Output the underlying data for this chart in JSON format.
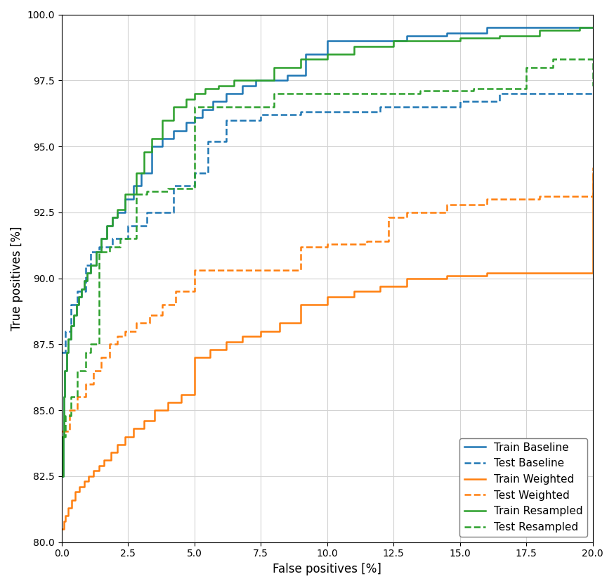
{
  "xlabel": "False positives [%]",
  "ylabel": "True positives [%]",
  "xlim": [
    0.0,
    20.0
  ],
  "ylim": [
    80.0,
    100.0
  ],
  "xticks": [
    0.0,
    2.5,
    5.0,
    7.5,
    10.0,
    12.5,
    15.0,
    17.5,
    20.0
  ],
  "yticks": [
    80.0,
    82.5,
    85.0,
    87.5,
    90.0,
    92.5,
    95.0,
    97.5,
    100.0
  ],
  "colors": {
    "blue": "#1f77b4",
    "orange": "#ff7f0e",
    "green": "#2ca02c"
  },
  "train_baseline_x": [
    0.0,
    0.05,
    0.08,
    0.12,
    0.18,
    0.25,
    0.35,
    0.45,
    0.55,
    0.65,
    0.75,
    0.85,
    0.95,
    1.1,
    1.3,
    1.5,
    1.7,
    1.9,
    2.1,
    2.4,
    2.7,
    3.0,
    3.4,
    3.8,
    4.2,
    4.7,
    5.0,
    5.3,
    5.7,
    6.2,
    6.8,
    7.3,
    7.8,
    8.5,
    9.2,
    10.0,
    11.0,
    12.0,
    13.0,
    14.5,
    16.0,
    17.0,
    18.0,
    19.0,
    20.0
  ],
  "train_baseline_y": [
    82.5,
    84.0,
    85.5,
    86.5,
    87.2,
    87.7,
    88.2,
    88.6,
    89.0,
    89.3,
    89.6,
    89.9,
    90.2,
    90.5,
    91.0,
    91.5,
    92.0,
    92.3,
    92.5,
    93.0,
    93.5,
    94.0,
    95.0,
    95.3,
    95.6,
    95.9,
    96.1,
    96.4,
    96.7,
    97.0,
    97.3,
    97.5,
    97.5,
    97.7,
    98.5,
    99.0,
    99.0,
    99.0,
    99.2,
    99.3,
    99.5,
    99.5,
    99.5,
    99.5,
    99.5
  ],
  "test_baseline_x": [
    0.0,
    0.15,
    0.35,
    0.6,
    0.9,
    1.1,
    1.4,
    1.9,
    2.5,
    3.2,
    4.2,
    5.0,
    5.5,
    6.2,
    7.5,
    9.0,
    10.5,
    12.0,
    13.5,
    15.0,
    16.5,
    18.0,
    20.0
  ],
  "test_baseline_y": [
    87.2,
    88.0,
    89.0,
    89.5,
    90.5,
    91.0,
    91.2,
    91.5,
    92.0,
    92.5,
    93.5,
    94.0,
    95.2,
    96.0,
    96.2,
    96.3,
    96.3,
    96.5,
    96.5,
    96.7,
    97.0,
    97.0,
    97.0
  ],
  "train_weighted_x": [
    0.0,
    0.08,
    0.15,
    0.25,
    0.38,
    0.52,
    0.68,
    0.85,
    1.0,
    1.2,
    1.4,
    1.6,
    1.85,
    2.1,
    2.4,
    2.7,
    3.1,
    3.5,
    4.0,
    4.5,
    5.0,
    5.6,
    6.2,
    6.8,
    7.5,
    8.2,
    9.0,
    10.0,
    11.0,
    12.0,
    13.0,
    14.5,
    16.0,
    17.5,
    19.0,
    20.0
  ],
  "train_weighted_y": [
    80.5,
    80.8,
    81.0,
    81.3,
    81.6,
    81.9,
    82.1,
    82.3,
    82.5,
    82.7,
    82.9,
    83.1,
    83.4,
    83.7,
    84.0,
    84.3,
    84.6,
    85.0,
    85.3,
    85.6,
    87.0,
    87.3,
    87.6,
    87.8,
    88.0,
    88.3,
    89.0,
    89.3,
    89.5,
    89.7,
    90.0,
    90.1,
    90.2,
    90.2,
    90.2,
    94.0
  ],
  "test_weighted_x": [
    0.0,
    0.3,
    0.6,
    0.9,
    1.2,
    1.5,
    1.8,
    2.1,
    2.4,
    2.8,
    3.3,
    3.8,
    4.3,
    5.0,
    6.0,
    7.5,
    9.0,
    10.0,
    11.5,
    12.3,
    13.0,
    14.5,
    16.0,
    18.0,
    20.0
  ],
  "test_weighted_y": [
    84.2,
    85.0,
    85.5,
    86.0,
    86.5,
    87.0,
    87.5,
    87.8,
    88.0,
    88.3,
    88.6,
    89.0,
    89.5,
    90.3,
    90.3,
    90.3,
    91.2,
    91.3,
    91.4,
    92.3,
    92.5,
    92.8,
    93.0,
    93.1,
    94.2
  ],
  "train_resampled_x": [
    0.0,
    0.05,
    0.08,
    0.12,
    0.18,
    0.25,
    0.35,
    0.45,
    0.55,
    0.65,
    0.75,
    0.85,
    0.95,
    1.1,
    1.3,
    1.5,
    1.7,
    1.9,
    2.1,
    2.4,
    2.8,
    3.1,
    3.4,
    3.8,
    4.2,
    4.7,
    5.0,
    5.4,
    5.9,
    6.5,
    7.2,
    8.0,
    9.0,
    10.0,
    11.0,
    12.5,
    13.5,
    15.0,
    16.5,
    18.0,
    19.5,
    20.0
  ],
  "train_resampled_y": [
    82.5,
    84.0,
    85.5,
    86.5,
    87.2,
    87.7,
    88.2,
    88.6,
    89.0,
    89.3,
    89.6,
    89.9,
    90.2,
    90.5,
    91.0,
    91.5,
    92.0,
    92.3,
    92.6,
    93.2,
    94.0,
    94.8,
    95.3,
    96.0,
    96.5,
    96.8,
    97.0,
    97.2,
    97.3,
    97.5,
    97.5,
    98.0,
    98.3,
    98.5,
    98.8,
    99.0,
    99.0,
    99.1,
    99.2,
    99.4,
    99.5,
    99.5
  ],
  "test_resampled_x": [
    0.0,
    0.15,
    0.35,
    0.6,
    0.9,
    1.1,
    1.4,
    1.8,
    2.2,
    2.8,
    3.2,
    4.0,
    5.0,
    6.5,
    8.0,
    10.0,
    12.0,
    13.5,
    15.5,
    17.5,
    18.5,
    20.0
  ],
  "test_resampled_y": [
    84.0,
    84.8,
    85.5,
    86.5,
    87.2,
    87.5,
    91.0,
    91.2,
    91.5,
    93.2,
    93.3,
    93.4,
    96.5,
    96.5,
    97.0,
    97.0,
    97.0,
    97.1,
    97.2,
    98.0,
    98.3,
    97.3
  ],
  "figsize": [
    8.74,
    8.33
  ],
  "dpi": 100
}
